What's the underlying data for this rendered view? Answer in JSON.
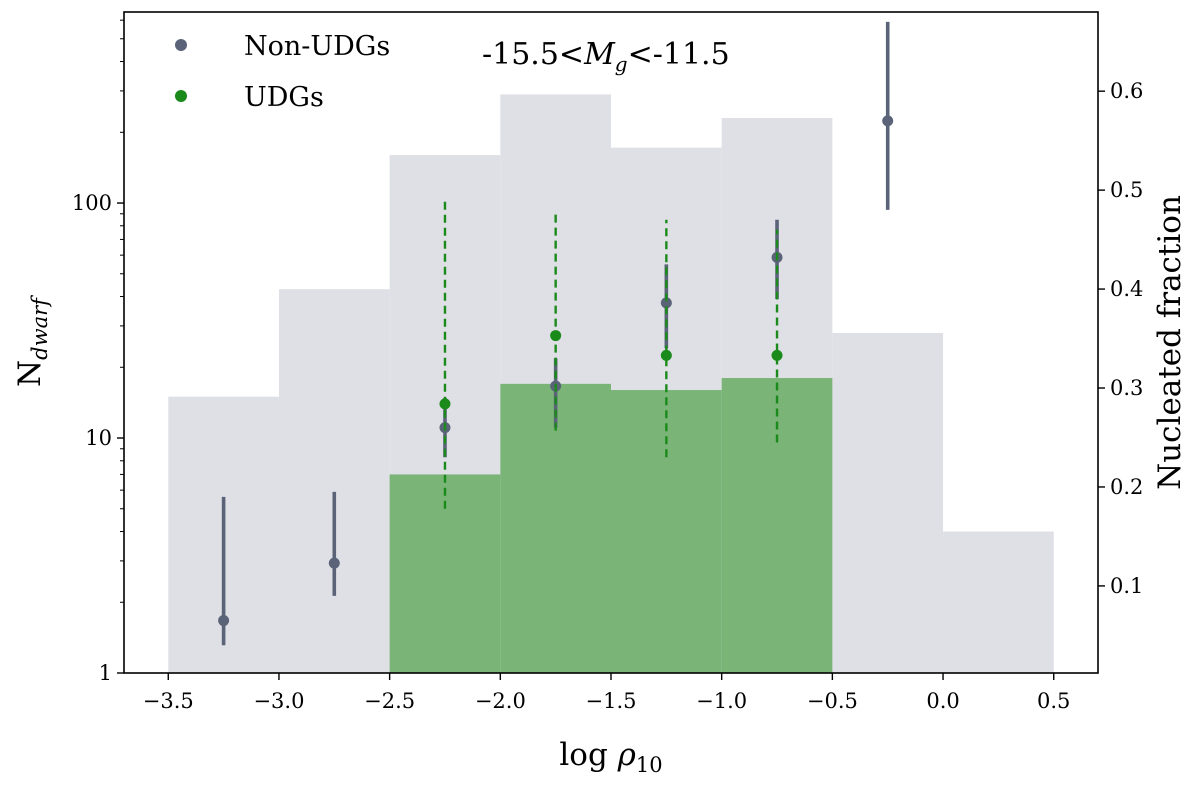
{
  "chart_data": {
    "type": "bar",
    "annotation": {
      "prefix": "-15.5<",
      "symbol": "M",
      "subscript": "g",
      "suffix": "<-11.5"
    },
    "xlabel": {
      "prefix": "log ",
      "symbol": "ρ",
      "subscript": "10"
    },
    "ylabel": {
      "prefix": "N",
      "subscript": "dwarf"
    },
    "y2label": "Nucleated fraction",
    "xlim": [
      -3.7,
      0.7
    ],
    "ylim": [
      1,
      650
    ],
    "y_scale": "log",
    "y2lim": [
      0.012,
      0.68
    ],
    "x_ticks": [
      -3.5,
      -3.0,
      -2.5,
      -2.0,
      -1.5,
      -1.0,
      -0.5,
      0.0,
      0.5
    ],
    "x_tick_labels": [
      "−3.5",
      "−3.0",
      "−2.5",
      "−2.0",
      "−1.5",
      "−1.0",
      "−0.5",
      "0.0",
      "0.5"
    ],
    "y_ticks": [
      1,
      10,
      100
    ],
    "y_tick_labels": [
      "1",
      "10",
      "100"
    ],
    "y2_ticks": [
      0.1,
      0.2,
      0.3,
      0.4,
      0.5,
      0.6
    ],
    "y2_tick_labels": [
      "0.1",
      "0.2",
      "0.3",
      "0.4",
      "0.5",
      "0.6"
    ],
    "histograms": [
      {
        "name": "Non-UDGs",
        "color": "#dfe0e5",
        "edges": [
          -3.5,
          -3.0,
          -2.5,
          -2.0,
          -1.5,
          -1.0,
          -0.5,
          0.0,
          0.5
        ],
        "counts": [
          15,
          43,
          160,
          290,
          172,
          230,
          28,
          4
        ]
      },
      {
        "name": "UDGs",
        "color": "#7ab577",
        "edges": [
          -2.5,
          -2.0,
          -1.5,
          -1.0,
          -0.5
        ],
        "counts": [
          7,
          17,
          16,
          18
        ]
      }
    ],
    "series": [
      {
        "name": "Non-UDGs",
        "color": "#5a6378",
        "style": "solid",
        "x": [
          -3.25,
          -2.75,
          -2.25,
          -1.75,
          -1.25,
          -0.75,
          -0.25
        ],
        "y": [
          0.065,
          0.123,
          0.26,
          0.302,
          0.386,
          0.432,
          0.57
        ],
        "y_low": [
          0.04,
          0.09,
          0.23,
          0.26,
          0.34,
          0.39,
          0.48
        ],
        "y_high": [
          0.19,
          0.195,
          0.29,
          0.33,
          0.425,
          0.47,
          0.67
        ]
      },
      {
        "name": "UDGs",
        "color": "#1a8a1a",
        "style": "dashed",
        "x": [
          -2.25,
          -1.75,
          -1.25,
          -0.75
        ],
        "y": [
          0.284,
          0.353,
          0.333,
          0.333
        ],
        "y_low": [
          0.178,
          0.257,
          0.23,
          0.245
        ],
        "y_high": [
          0.49,
          0.48,
          0.47,
          0.46
        ]
      }
    ],
    "legend": {
      "placement": "top-left",
      "entries": [
        "Non-UDGs",
        "UDGs"
      ]
    }
  }
}
